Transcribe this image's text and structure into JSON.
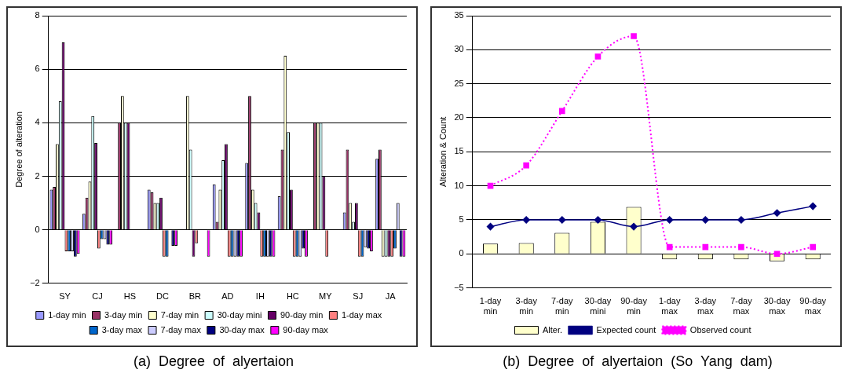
{
  "chart_data": [
    {
      "type": "bar",
      "title": "(a)  Degree  of  alyertaion",
      "ylabel": "Degree of alteration",
      "categories": [
        "SY",
        "CJ",
        "HS",
        "DC",
        "BR",
        "AD",
        "IH",
        "HC",
        "MY",
        "SJ",
        "JA"
      ],
      "series": [
        {
          "name": "1-day min",
          "color": "#9999ff",
          "values": [
            1.5,
            0.6,
            0,
            1.5,
            0,
            1.7,
            2.5,
            1.25,
            0,
            0.65,
            2.65
          ]
        },
        {
          "name": "3-day min",
          "color": "#993366",
          "values": [
            1.6,
            1.2,
            4,
            1.4,
            0,
            0.3,
            5,
            3,
            4,
            3,
            3
          ]
        },
        {
          "name": "7-day min",
          "color": "#ffffcc",
          "values": [
            3.2,
            1.8,
            5,
            1,
            5,
            1.5,
            1.5,
            6.5,
            4,
            1,
            -1
          ]
        },
        {
          "name": "30-day mini",
          "color": "#ccffff",
          "values": [
            4.8,
            4.25,
            4,
            1,
            3,
            2.6,
            1,
            3.65,
            4,
            0.3,
            -1
          ]
        },
        {
          "name": "90-day min",
          "color": "#660066",
          "values": [
            7,
            3.25,
            4,
            1.2,
            -1,
            3.2,
            0.65,
            1.5,
            2,
            1,
            -1
          ]
        },
        {
          "name": "1-day max",
          "color": "#ff8080",
          "values": [
            -0.8,
            -0.7,
            0,
            -1,
            -0.5,
            -1,
            -1,
            -1,
            -1,
            -1,
            -1
          ]
        },
        {
          "name": "3-day max",
          "color": "#0066cc",
          "values": [
            -0.8,
            -0.35,
            0,
            -1,
            0,
            -1,
            -1,
            -1,
            0,
            -1,
            -0.7
          ]
        },
        {
          "name": "7-day max",
          "color": "#ccccff",
          "values": [
            -0.8,
            -0.35,
            0,
            0,
            0,
            -1,
            -1,
            -1,
            0,
            -0.65,
            1
          ]
        },
        {
          "name": "30-day max",
          "color": "#000080",
          "values": [
            -1,
            -0.55,
            0,
            -0.6,
            0,
            -1,
            -1,
            -0.7,
            0,
            -0.7,
            -1
          ]
        },
        {
          "name": "90-day max",
          "color": "#ff00ff",
          "values": [
            -0.9,
            -0.55,
            0,
            -0.6,
            -1,
            -1,
            -1,
            -1,
            0,
            -0.8,
            -1
          ]
        }
      ],
      "ylim": [
        -2,
        8
      ],
      "yticks": [
        -2,
        0,
        2,
        4,
        6,
        8
      ],
      "grid": "y",
      "legend": "bottom"
    },
    {
      "type": "bar",
      "title": "(b)  Degree  of  alyertaion  (So  Yang  dam)",
      "ylabel": "Alteration & Count",
      "categories": [
        "1-day min",
        "3-day min",
        "7-day min",
        "30-day mini",
        "90-day min",
        "1-day max",
        "3-day max",
        "7-day max",
        "30-day max",
        "90-day max"
      ],
      "series": [
        {
          "name": "Alter.",
          "color": "#ffffcc",
          "values": [
            1.5,
            1.6,
            3.1,
            4.7,
            6.9,
            -0.8,
            -0.8,
            -0.8,
            -1.1,
            -0.8
          ]
        },
        {
          "name": "Expected count",
          "type": "line",
          "color": "#000080",
          "marker": "diamond",
          "line_style": "solid",
          "values": [
            4,
            5,
            5,
            5,
            4,
            5,
            5,
            5,
            6,
            7
          ]
        },
        {
          "name": "Observed count",
          "type": "line",
          "color": "#ff00ff",
          "marker": "square",
          "line_style": "dotted",
          "values": [
            10,
            13,
            21,
            29,
            32,
            1,
            1,
            1,
            0,
            1
          ]
        }
      ],
      "ylim": [
        -5,
        35
      ],
      "yticks": [
        -5,
        0,
        5,
        10,
        15,
        20,
        25,
        30,
        35
      ],
      "grid": "y",
      "legend": "bottom"
    }
  ]
}
